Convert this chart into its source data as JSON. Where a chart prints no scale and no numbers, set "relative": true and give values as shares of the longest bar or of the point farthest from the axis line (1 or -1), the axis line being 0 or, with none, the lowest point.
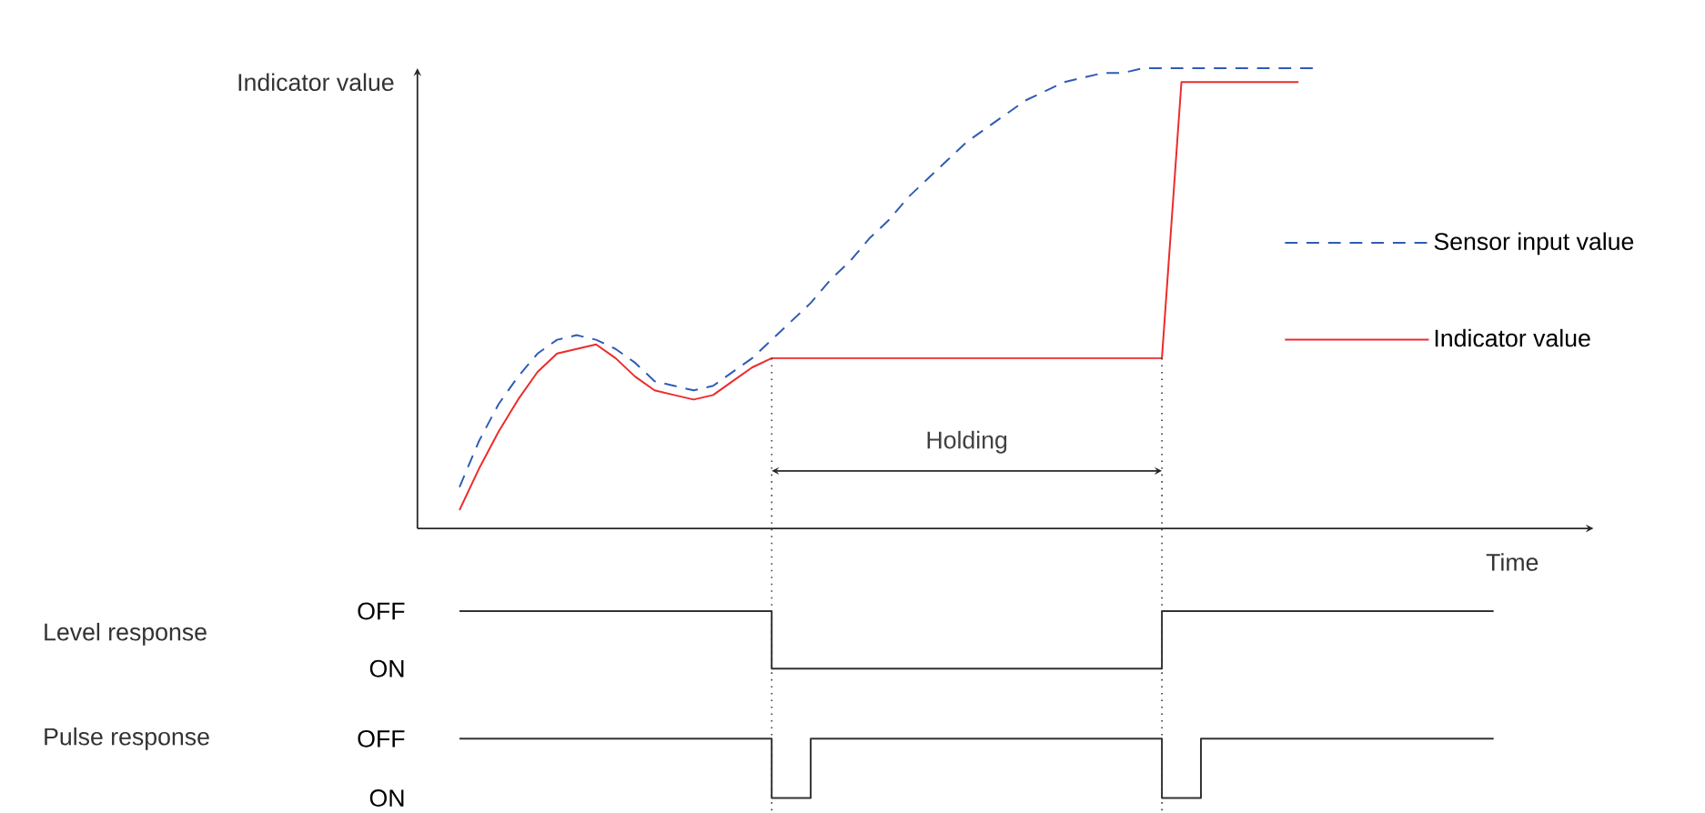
{
  "chart_data": [
    {
      "type": "line",
      "relative": true,
      "ylabel": "Indicator value",
      "xlabel": "Time",
      "legend": "right",
      "categories": [
        null,
        null,
        null,
        null,
        null,
        null,
        null,
        null,
        null,
        null,
        null,
        null,
        null,
        null,
        null,
        null,
        null,
        null,
        null,
        null,
        null,
        null,
        null,
        null,
        null,
        null,
        null,
        null,
        null,
        null,
        null,
        null,
        null,
        null,
        null,
        null,
        null,
        null,
        null,
        null,
        null,
        null,
        null,
        null,
        null,
        null,
        null,
        null,
        null,
        null,
        null,
        null,
        null,
        null
      ],
      "series": [
        {
          "name": "Sensor input value",
          "color": "#2f5bb5",
          "line_style": "dashed",
          "values": [
            0.09,
            0.19,
            0.27,
            0.33,
            0.38,
            0.41,
            0.42,
            0.41,
            0.39,
            0.36,
            0.32,
            0.31,
            0.3,
            0.31,
            0.34,
            0.37,
            0.41,
            0.45,
            0.49,
            0.54,
            0.58,
            0.63,
            0.67,
            0.72,
            0.76,
            0.8,
            0.84,
            0.87,
            0.9,
            0.93,
            0.95,
            0.97,
            0.98,
            0.99,
            0.99,
            1.0,
            1.0,
            1.0,
            1.0,
            1.0,
            1.0,
            1.0,
            1.0,
            1.0,
            1.0,
            null,
            null,
            null,
            null,
            null,
            null,
            null,
            null,
            null
          ]
        },
        {
          "name": "Indicator value",
          "color": "#ee2a2a",
          "line_style": "solid",
          "values": [
            0.04,
            0.13,
            0.21,
            0.28,
            0.34,
            0.38,
            0.39,
            0.4,
            0.37,
            0.33,
            0.3,
            0.29,
            0.28,
            0.29,
            0.32,
            0.35,
            0.37,
            0.37,
            0.37,
            0.37,
            0.37,
            0.37,
            0.37,
            0.37,
            0.37,
            0.37,
            0.37,
            0.37,
            0.37,
            0.37,
            0.37,
            0.37,
            0.37,
            0.37,
            0.37,
            0.37,
            0.37,
            0.97,
            0.97,
            0.97,
            0.97,
            0.97,
            0.97,
            0.97,
            null,
            null,
            null,
            null,
            null,
            null,
            null,
            null,
            null,
            null
          ]
        }
      ],
      "annotations": [
        "Holding"
      ]
    },
    {
      "type": "step",
      "ylabel": "Level response",
      "relative": true,
      "color": "#333333",
      "annotations": [
        "OFF",
        "ON"
      ],
      "categories": [
        null,
        null,
        null,
        null,
        null,
        null,
        null,
        null,
        null,
        null,
        null,
        null,
        null,
        null,
        null,
        null,
        null,
        null,
        null,
        null,
        null,
        null,
        null,
        null,
        null,
        null,
        null,
        null,
        null,
        null,
        null,
        null,
        null,
        null,
        null,
        null,
        null,
        null,
        null,
        null,
        null,
        null,
        null,
        null,
        null,
        null,
        null,
        null,
        null,
        null,
        null,
        null,
        null,
        null
      ],
      "values": [
        1,
        1,
        1,
        1,
        1,
        1,
        1,
        1,
        1,
        1,
        1,
        1,
        1,
        1,
        1,
        1,
        0,
        0,
        0,
        0,
        0,
        0,
        0,
        0,
        0,
        0,
        0,
        0,
        0,
        0,
        0,
        0,
        0,
        0,
        0,
        0,
        1,
        1,
        1,
        1,
        1,
        1,
        1,
        1,
        1,
        1,
        1,
        1,
        1,
        1,
        1,
        1,
        1,
        1
      ]
    },
    {
      "type": "step",
      "ylabel": "Pulse response",
      "relative": true,
      "color": "#333333",
      "annotations": [
        "OFF",
        "ON"
      ],
      "categories": [
        null,
        null,
        null,
        null,
        null,
        null,
        null,
        null,
        null,
        null,
        null,
        null,
        null,
        null,
        null,
        null,
        null,
        null,
        null,
        null,
        null,
        null,
        null,
        null,
        null,
        null,
        null,
        null,
        null,
        null,
        null,
        null,
        null,
        null,
        null,
        null,
        null,
        null,
        null,
        null,
        null,
        null,
        null,
        null,
        null,
        null,
        null,
        null,
        null,
        null,
        null,
        null,
        null,
        null
      ],
      "values": [
        1,
        1,
        1,
        1,
        1,
        1,
        1,
        1,
        1,
        1,
        1,
        1,
        1,
        1,
        1,
        1,
        0,
        0,
        1,
        1,
        1,
        1,
        1,
        1,
        1,
        1,
        1,
        1,
        1,
        1,
        1,
        1,
        1,
        1,
        1,
        1,
        0,
        0,
        1,
        1,
        1,
        1,
        1,
        1,
        1,
        1,
        1,
        1,
        1,
        1,
        1,
        1,
        1,
        1
      ]
    }
  ]
}
